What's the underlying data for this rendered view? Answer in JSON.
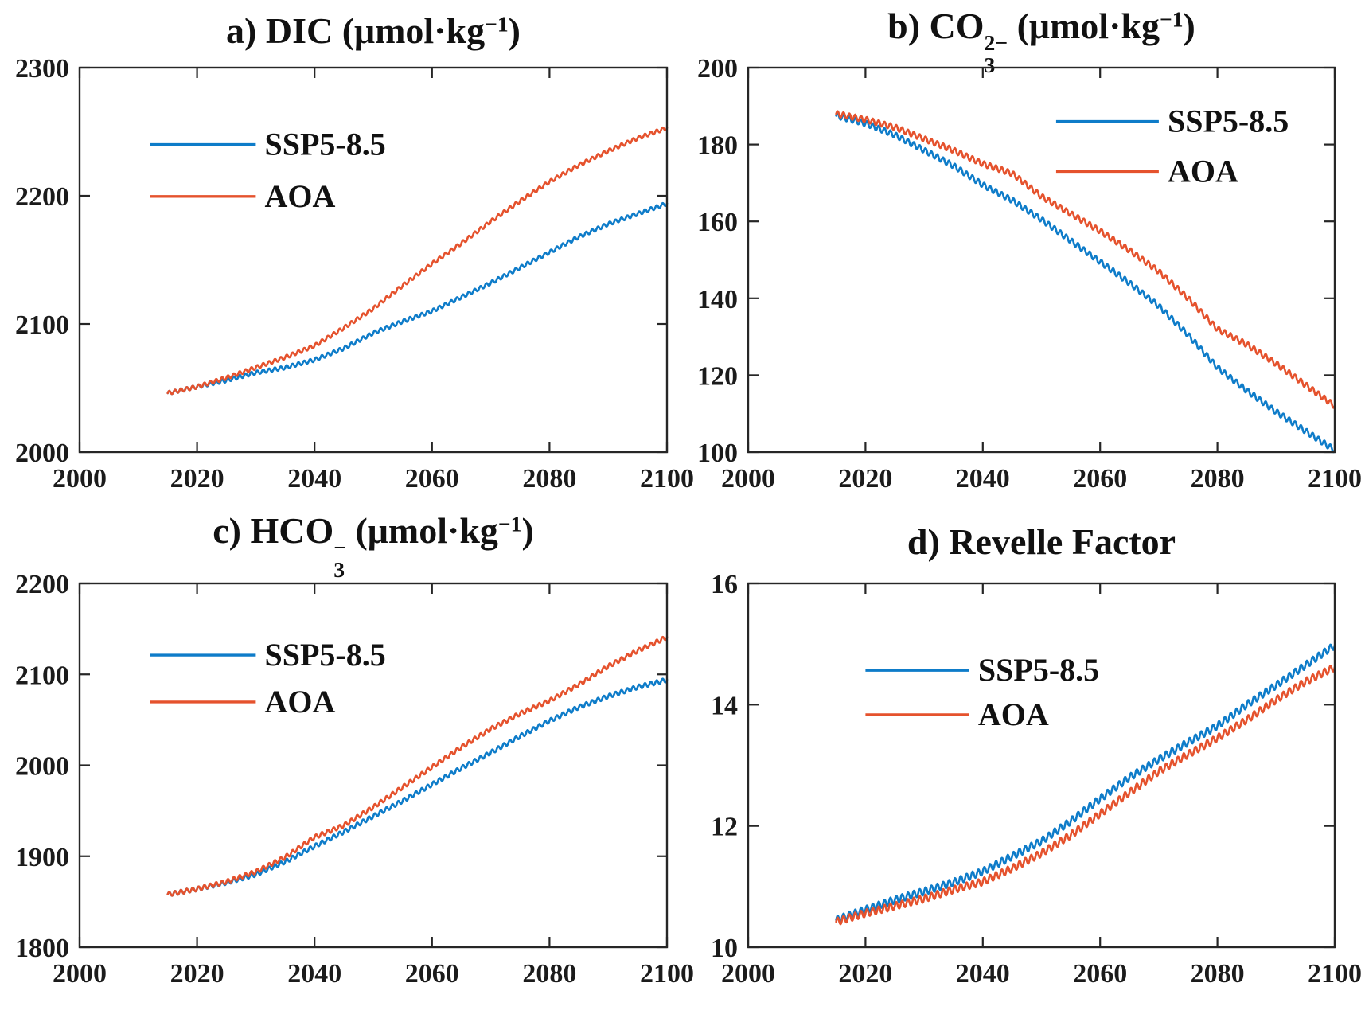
{
  "colors": {
    "ssp5_blue": "#0e7cc9",
    "aoa_orange": "#e5522d",
    "axis": "#262626",
    "tick_label": "#1b1b1b",
    "background": "#ffffff"
  },
  "legend_entries": [
    "SSP5-8.5",
    "AOA"
  ],
  "chart_data": [
    {
      "label": "a",
      "type": "line",
      "title": "a) DIC (μmol·kg⁻¹)",
      "title_parts": [
        {
          "text": "a) DIC (μmol·kg"
        },
        {
          "sup": "−1"
        },
        {
          "text": ")"
        }
      ],
      "xlabel": "",
      "ylabel": "",
      "xlim": [
        2000,
        2100
      ],
      "ylim": [
        2000,
        2300
      ],
      "xticks": [
        2000,
        2020,
        2040,
        2060,
        2080,
        2100
      ],
      "yticks": [
        2000,
        2100,
        2200,
        2300
      ],
      "grid": false,
      "osc_amplitude": 1.5,
      "legend": {
        "entries": [
          "SSP5-8.5",
          "AOA"
        ],
        "line_x": [
          0.12,
          0.3
        ],
        "label_x": 0.315,
        "entry_y": [
          0.2,
          0.335
        ]
      },
      "series": [
        {
          "name": "SSP5-8.5",
          "color_key": "ssp5_blue",
          "anchors": [
            [
              2015,
              2046
            ],
            [
              2020,
              2051
            ],
            [
              2025,
              2056
            ],
            [
              2030,
              2062
            ],
            [
              2035,
              2066
            ],
            [
              2040,
              2072
            ],
            [
              2045,
              2081
            ],
            [
              2050,
              2093
            ],
            [
              2055,
              2102
            ],
            [
              2060,
              2110
            ],
            [
              2065,
              2121
            ],
            [
              2070,
              2132
            ],
            [
              2075,
              2144
            ],
            [
              2080,
              2156
            ],
            [
              2085,
              2168
            ],
            [
              2090,
              2178
            ],
            [
              2095,
              2186
            ],
            [
              2100,
              2194
            ]
          ]
        },
        {
          "name": "AOA",
          "color_key": "aoa_orange",
          "anchors": [
            [
              2015,
              2046
            ],
            [
              2020,
              2051
            ],
            [
              2025,
              2058
            ],
            [
              2030,
              2066
            ],
            [
              2035,
              2074
            ],
            [
              2040,
              2083
            ],
            [
              2045,
              2097
            ],
            [
              2050,
              2112
            ],
            [
              2055,
              2130
            ],
            [
              2060,
              2147
            ],
            [
              2065,
              2163
            ],
            [
              2070,
              2180
            ],
            [
              2075,
              2196
            ],
            [
              2080,
              2211
            ],
            [
              2085,
              2224
            ],
            [
              2090,
              2235
            ],
            [
              2095,
              2245
            ],
            [
              2100,
              2253
            ]
          ]
        }
      ]
    },
    {
      "label": "b",
      "type": "line",
      "title": "b) CO₃²⁻ (μmol·kg⁻¹)",
      "title_parts": [
        {
          "text": "b) CO"
        },
        {
          "stack": {
            "sup": "2−",
            "sub": "3"
          }
        },
        {
          "text": " (μmol·kg"
        },
        {
          "sup": "−1"
        },
        {
          "text": ")"
        }
      ],
      "xlabel": "",
      "ylabel": "",
      "xlim": [
        2000,
        2100
      ],
      "ylim": [
        100,
        200
      ],
      "xticks": [
        2000,
        2020,
        2040,
        2060,
        2080,
        2100
      ],
      "yticks": [
        100,
        120,
        140,
        160,
        180,
        200
      ],
      "grid": false,
      "osc_amplitude": 0.75,
      "legend": {
        "entries": [
          "SSP5-8.5",
          "AOA"
        ],
        "line_x": [
          0.525,
          0.7
        ],
        "label_x": 0.715,
        "entry_y": [
          0.14,
          0.27
        ]
      },
      "series": [
        {
          "name": "SSP5-8.5",
          "color_key": "ssp5_blue",
          "anchors": [
            [
              2015,
              187.5
            ],
            [
              2020,
              185.5
            ],
            [
              2025,
              182.5
            ],
            [
              2030,
              178.5
            ],
            [
              2035,
              174.5
            ],
            [
              2040,
              169.5
            ],
            [
              2045,
              165.5
            ],
            [
              2050,
              160.5
            ],
            [
              2055,
              155
            ],
            [
              2060,
              149.5
            ],
            [
              2065,
              144
            ],
            [
              2070,
              138
            ],
            [
              2075,
              130.5
            ],
            [
              2080,
              122
            ],
            [
              2085,
              116
            ],
            [
              2090,
              110.5
            ],
            [
              2095,
              105.5
            ],
            [
              2100,
              100.5
            ]
          ]
        },
        {
          "name": "AOA",
          "color_key": "aoa_orange",
          "anchors": [
            [
              2015,
              188
            ],
            [
              2020,
              186.5
            ],
            [
              2025,
              184.5
            ],
            [
              2030,
              181.5
            ],
            [
              2035,
              178.5
            ],
            [
              2040,
              175
            ],
            [
              2045,
              172.5
            ],
            [
              2050,
              166.5
            ],
            [
              2055,
              162
            ],
            [
              2060,
              157.5
            ],
            [
              2065,
              152.5
            ],
            [
              2070,
              147
            ],
            [
              2075,
              140
            ],
            [
              2080,
              132
            ],
            [
              2085,
              128
            ],
            [
              2090,
              123
            ],
            [
              2095,
              117.5
            ],
            [
              2100,
              112
            ]
          ]
        }
      ]
    },
    {
      "label": "c",
      "type": "line",
      "title": "c) HCO₃⁻ (μmol·kg⁻¹)",
      "title_parts": [
        {
          "text": "c) HCO"
        },
        {
          "stack": {
            "sup": "−",
            "sub": "3"
          }
        },
        {
          "text": " (μmol·kg"
        },
        {
          "sup": "−1"
        },
        {
          "text": ")"
        }
      ],
      "xlabel": "",
      "ylabel": "",
      "xlim": [
        2000,
        2100
      ],
      "ylim": [
        1800,
        2200
      ],
      "xticks": [
        2000,
        2020,
        2040,
        2060,
        2080,
        2100
      ],
      "yticks": [
        1800,
        1900,
        2000,
        2100,
        2200
      ],
      "grid": false,
      "osc_amplitude": 2.4,
      "legend": {
        "entries": [
          "SSP5-8.5",
          "AOA"
        ],
        "line_x": [
          0.12,
          0.3
        ],
        "label_x": 0.315,
        "entry_y": [
          0.197,
          0.326
        ]
      },
      "series": [
        {
          "name": "SSP5-8.5",
          "color_key": "ssp5_blue",
          "anchors": [
            [
              2015,
              1858
            ],
            [
              2020,
              1864
            ],
            [
              2025,
              1871
            ],
            [
              2030,
              1880
            ],
            [
              2035,
              1894
            ],
            [
              2040,
              1911
            ],
            [
              2045,
              1927
            ],
            [
              2050,
              1944
            ],
            [
              2055,
              1961
            ],
            [
              2060,
              1979
            ],
            [
              2065,
              1997
            ],
            [
              2070,
              2014
            ],
            [
              2075,
              2032
            ],
            [
              2080,
              2049
            ],
            [
              2085,
              2064
            ],
            [
              2090,
              2076
            ],
            [
              2095,
              2086
            ],
            [
              2100,
              2094
            ]
          ]
        },
        {
          "name": "AOA",
          "color_key": "aoa_orange",
          "anchors": [
            [
              2015,
              1858
            ],
            [
              2020,
              1864
            ],
            [
              2025,
              1872
            ],
            [
              2030,
              1883
            ],
            [
              2035,
              1899
            ],
            [
              2040,
              1921
            ],
            [
              2045,
              1934
            ],
            [
              2050,
              1954
            ],
            [
              2055,
              1976
            ],
            [
              2060,
              1998
            ],
            [
              2065,
              2020
            ],
            [
              2070,
              2040
            ],
            [
              2075,
              2057
            ],
            [
              2080,
              2071
            ],
            [
              2085,
              2089
            ],
            [
              2090,
              2109
            ],
            [
              2095,
              2126
            ],
            [
              2100,
              2141
            ]
          ]
        }
      ]
    },
    {
      "label": "d",
      "type": "line",
      "title": "d) Revelle Factor",
      "title_parts": [
        {
          "text": "d) Revelle Factor"
        }
      ],
      "xlabel": "",
      "ylabel": "",
      "xlim": [
        2000,
        2100
      ],
      "ylim": [
        10,
        16
      ],
      "xticks": [
        2000,
        2020,
        2040,
        2060,
        2080,
        2100
      ],
      "yticks": [
        10,
        12,
        14,
        16
      ],
      "grid": false,
      "osc_amplitude": 0.06,
      "legend": {
        "entries": [
          "SSP5-8.5",
          "AOA"
        ],
        "line_x": [
          0.2,
          0.376
        ],
        "label_x": 0.392,
        "entry_y": [
          0.239,
          0.361
        ]
      },
      "series": [
        {
          "name": "SSP5-8.5",
          "color_key": "ssp5_blue",
          "anchors": [
            [
              2015,
              10.45
            ],
            [
              2020,
              10.62
            ],
            [
              2025,
              10.78
            ],
            [
              2030,
              10.92
            ],
            [
              2035,
              11.07
            ],
            [
              2040,
              11.25
            ],
            [
              2045,
              11.5
            ],
            [
              2050,
              11.75
            ],
            [
              2055,
              12.08
            ],
            [
              2060,
              12.45
            ],
            [
              2065,
              12.8
            ],
            [
              2070,
              13.1
            ],
            [
              2075,
              13.38
            ],
            [
              2080,
              13.65
            ],
            [
              2085,
              14.0
            ],
            [
              2090,
              14.32
            ],
            [
              2095,
              14.65
            ],
            [
              2100,
              14.98
            ]
          ]
        },
        {
          "name": "AOA",
          "color_key": "aoa_orange",
          "anchors": [
            [
              2015,
              10.42
            ],
            [
              2020,
              10.56
            ],
            [
              2025,
              10.68
            ],
            [
              2030,
              10.8
            ],
            [
              2035,
              10.95
            ],
            [
              2040,
              11.08
            ],
            [
              2045,
              11.3
            ],
            [
              2050,
              11.55
            ],
            [
              2055,
              11.85
            ],
            [
              2060,
              12.2
            ],
            [
              2065,
              12.55
            ],
            [
              2070,
              12.9
            ],
            [
              2075,
              13.18
            ],
            [
              2080,
              13.45
            ],
            [
              2085,
              13.75
            ],
            [
              2090,
              14.08
            ],
            [
              2095,
              14.38
            ],
            [
              2100,
              14.62
            ]
          ]
        }
      ]
    }
  ]
}
